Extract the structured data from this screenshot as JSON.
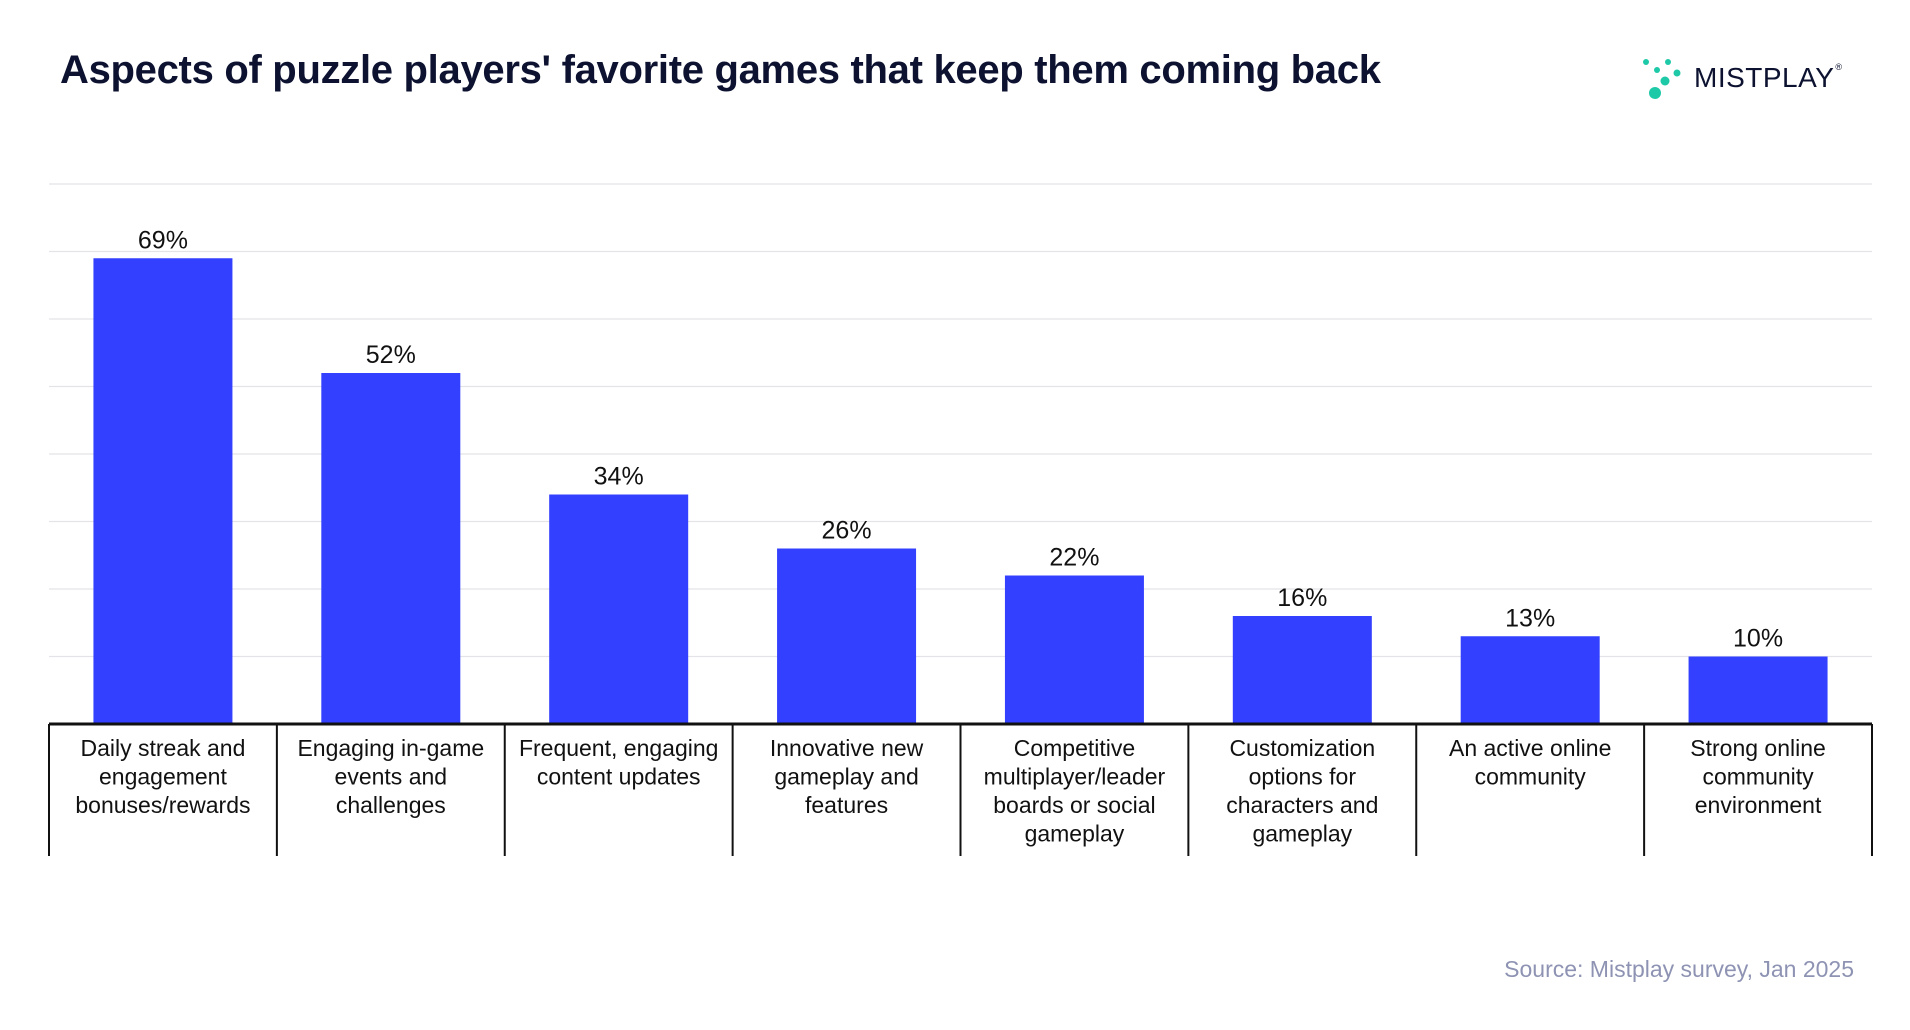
{
  "title": "Aspects of puzzle players' favorite games that keep them coming back",
  "brand": {
    "name": "MISTPLAY",
    "registered_mark": "®",
    "mark_color": "#1ec9a8",
    "text_color": "#0c1230"
  },
  "source": "Source: Mistplay survey, Jan 2025",
  "chart_data": {
    "type": "bar",
    "title": "Aspects of puzzle players' favorite games that keep them coming back",
    "xlabel": "",
    "ylabel": "",
    "ylim": [
      0,
      80
    ],
    "grid": true,
    "value_suffix": "%",
    "bar_color": "#3340ff",
    "categories": [
      [
        "Daily streak and",
        "engagement",
        "bonuses/rewards"
      ],
      [
        "Engaging in-game",
        "events and",
        "challenges"
      ],
      [
        "Frequent, engaging",
        "content updates"
      ],
      [
        "Innovative new",
        "gameplay and",
        "features"
      ],
      [
        "Competitive",
        "multiplayer/leader",
        "boards or social",
        "gameplay"
      ],
      [
        "Customization",
        "options for",
        "characters and",
        "gameplay"
      ],
      [
        "An active online",
        "community"
      ],
      [
        "Strong online",
        "community",
        "environment"
      ]
    ],
    "values": [
      69,
      52,
      34,
      26,
      22,
      16,
      13,
      10
    ]
  }
}
